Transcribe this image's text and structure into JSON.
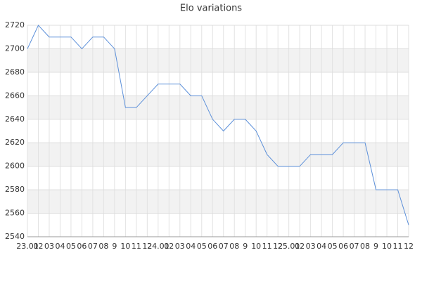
{
  "chart_data": {
    "type": "line",
    "title": "Elo variations",
    "categories": [
      "23.01",
      "02",
      "03",
      "04",
      "05",
      "06",
      "07",
      "08",
      "9",
      "10",
      "11",
      "12",
      "24.01",
      "02",
      "03",
      "04",
      "05",
      "06",
      "07",
      "08",
      "9",
      "10",
      "11",
      "12",
      "25.01",
      "02",
      "03",
      "04",
      "05",
      "06",
      "07",
      "08",
      "9",
      "10",
      "11",
      "12"
    ],
    "values": [
      2700,
      2720,
      2710,
      2710,
      2710,
      2700,
      2710,
      2710,
      2700,
      2650,
      2650,
      2660,
      2670,
      2670,
      2670,
      2660,
      2660,
      2640,
      2630,
      2640,
      2640,
      2630,
      2610,
      2600,
      2600,
      2600,
      2610,
      2610,
      2610,
      2620,
      2620,
      2620,
      2580,
      2580,
      2580,
      2550
    ],
    "color": "#5b8fd9",
    "ylim": [
      2540,
      2720
    ],
    "yticks": [
      2540,
      2560,
      2580,
      2600,
      2620,
      2640,
      2660,
      2680,
      2700,
      2720
    ],
    "grid": true
  }
}
